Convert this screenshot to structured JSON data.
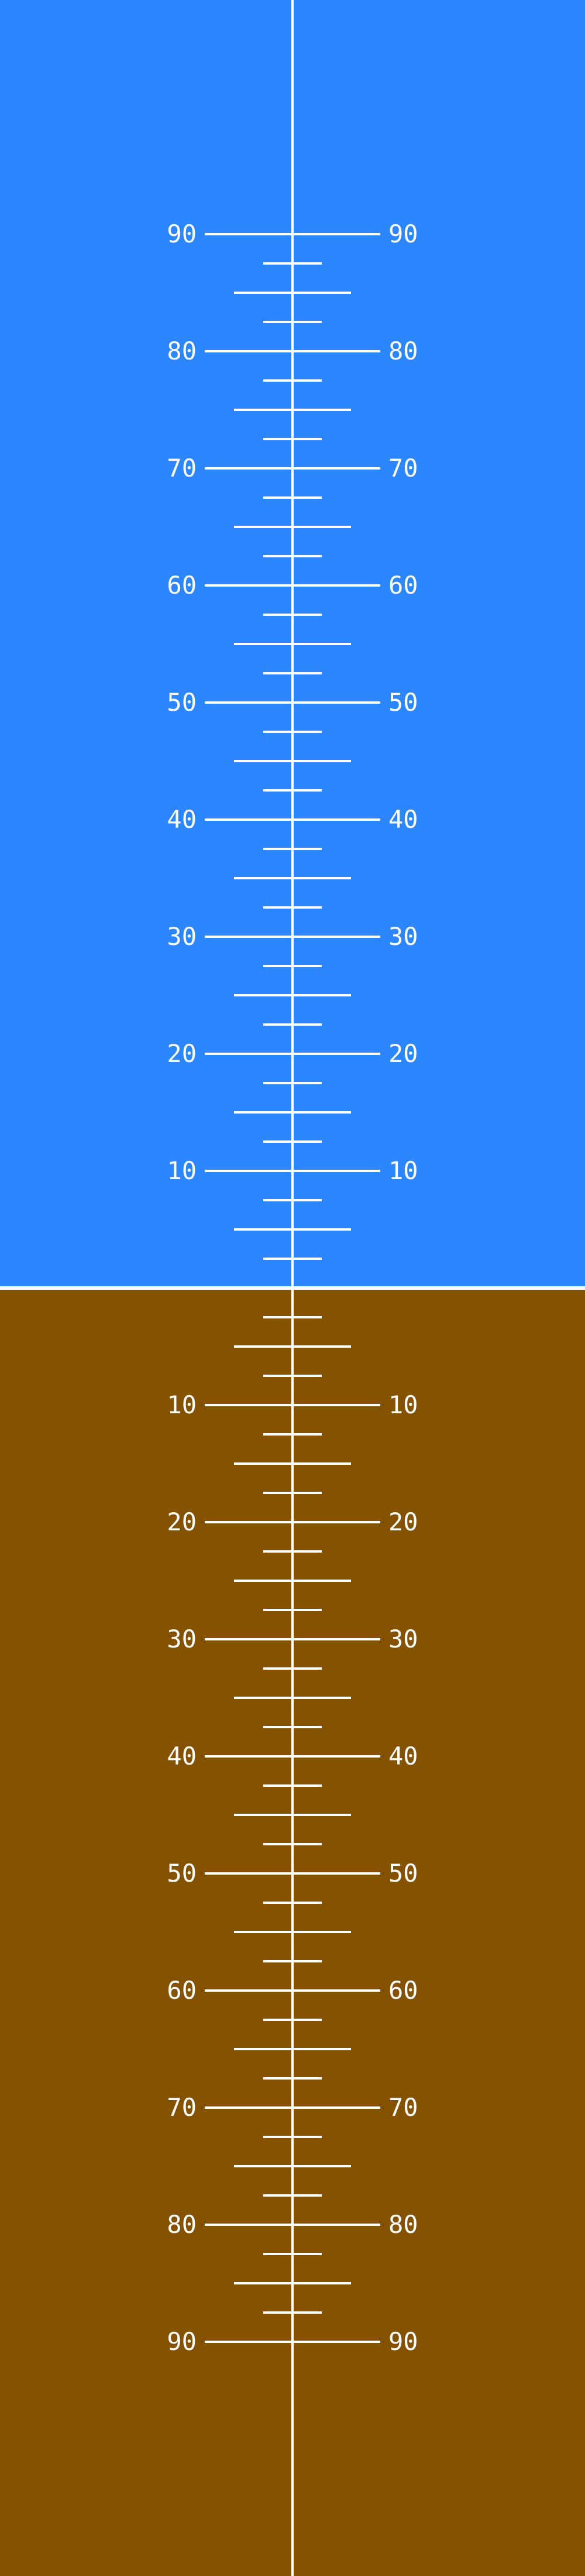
{
  "colors": {
    "sky": "#2b86ff",
    "ground": "#845200",
    "lines": "#ffffff"
  },
  "pitch_ladder": {
    "step_degrees": 2.5,
    "major_every_degrees": 10,
    "sky_labels": [
      "90",
      "80",
      "70",
      "60",
      "50",
      "40",
      "30",
      "20",
      "10"
    ],
    "ground_labels": [
      "10",
      "20",
      "30",
      "40",
      "50",
      "60",
      "70",
      "80",
      "90"
    ]
  }
}
